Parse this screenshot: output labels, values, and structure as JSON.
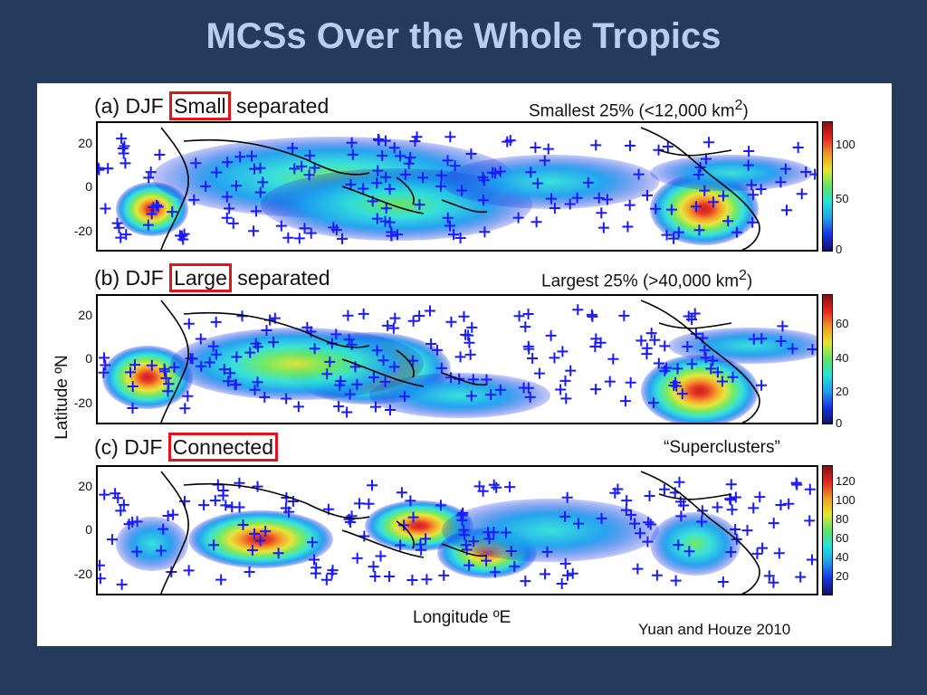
{
  "slide": {
    "title": "MCSs Over the Whole Tropics",
    "credit": "Yuan and Houze 2010"
  },
  "colors": {
    "background": "#243b5c",
    "title": "#b9cdf0",
    "highlight": "#e0141c",
    "crosses": "#1a1aff"
  },
  "chart_data": [
    {
      "type": "heatmap",
      "panel": "(a)",
      "title_prefix": "(a) DJF",
      "title_highlight": "Small",
      "title_suffix": "separated",
      "note": "Smallest 25% (<12,000 km",
      "note_sup": "2",
      "note_end": ")",
      "ylabel": "",
      "xlabel": "",
      "y_ticks": [
        "20",
        "0",
        "-20"
      ],
      "colorbar_ticks": [
        "100",
        "50",
        "0"
      ],
      "colorbar_range": [
        0,
        120
      ]
    },
    {
      "type": "heatmap",
      "panel": "(b)",
      "title_prefix": "(b) DJF",
      "title_highlight": "Large",
      "title_suffix": "separated",
      "note": "Largest 25% (>40,000 km",
      "note_sup": "2",
      "note_end": ")",
      "ylabel": "Latitude ºN",
      "xlabel": "",
      "y_ticks": [
        "20",
        "0",
        "-20"
      ],
      "colorbar_ticks": [
        "60",
        "40",
        "20",
        "0"
      ],
      "colorbar_range": [
        0,
        75
      ]
    },
    {
      "type": "heatmap",
      "panel": "(c)",
      "title_prefix": "(c) DJF",
      "title_highlight": "Connected",
      "title_suffix": "",
      "note": "“Superclusters”",
      "note_sup": "",
      "note_end": "",
      "ylabel": "",
      "xlabel": "Longitude ºE",
      "y_ticks": [
        "20",
        "0",
        "-20"
      ],
      "colorbar_ticks": [
        "120",
        "100",
        "80",
        "60",
        "40",
        "20"
      ],
      "colorbar_range": [
        0,
        130
      ]
    }
  ],
  "axis_labels": {
    "y": "Latitude ºN",
    "x": "Longitude ºE"
  }
}
